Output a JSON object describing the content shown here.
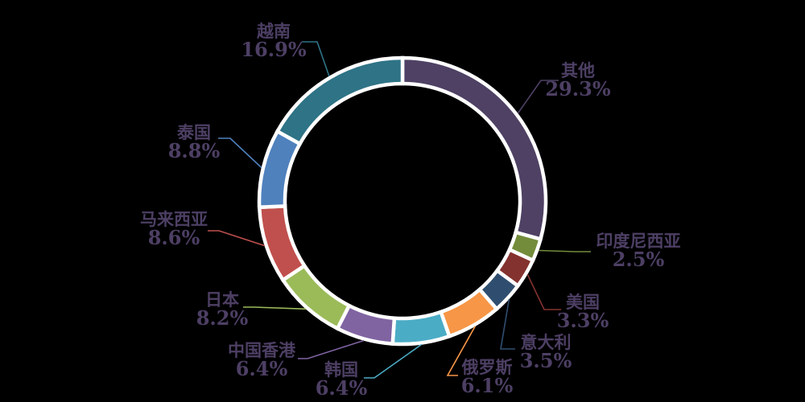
{
  "chart_data": {
    "type": "pie",
    "variant": "donut",
    "title": "",
    "unit": "percent",
    "start_angle_deg": 0,
    "direction": "clockwise",
    "legend": "none (callout labels with leader lines)",
    "background": "#000000",
    "separator_color": "#FFFFFF",
    "label_color": "#4D3F64",
    "categories": [
      "其他",
      "印度尼西亚",
      "美国",
      "意大利",
      "俄罗斯",
      "韩国",
      "中国香港",
      "日本",
      "马来西亚",
      "泰国",
      "越南"
    ],
    "values": [
      29.3,
      2.5,
      3.3,
      3.5,
      6.1,
      6.4,
      6.4,
      8.2,
      8.6,
      8.8,
      16.9
    ],
    "slices": [
      {
        "name": "其他",
        "value": 29.3,
        "label": "29.3%",
        "color": "#4E4164"
      },
      {
        "name": "印度尼西亚",
        "value": 2.5,
        "label": "2.5%",
        "color": "#738C3B"
      },
      {
        "name": "美国",
        "value": 3.3,
        "label": "3.3%",
        "color": "#84322F"
      },
      {
        "name": "意大利",
        "value": 3.5,
        "label": "3.5%",
        "color": "#2F4E6F"
      },
      {
        "name": "俄罗斯",
        "value": 6.1,
        "label": "6.1%",
        "color": "#F79646"
      },
      {
        "name": "韩国",
        "value": 6.4,
        "label": "6.4%",
        "color": "#4BACC6"
      },
      {
        "name": "中国香港",
        "value": 6.4,
        "label": "6.4%",
        "color": "#8064A2"
      },
      {
        "name": "日本",
        "value": 8.2,
        "label": "8.2%",
        "color": "#9BBB59"
      },
      {
        "name": "马来西亚",
        "value": 8.6,
        "label": "8.6%",
        "color": "#C0504D"
      },
      {
        "name": "泰国",
        "value": 8.8,
        "label": "8.8%",
        "color": "#4F81BD"
      },
      {
        "name": "越南",
        "value": 16.9,
        "label": "16.9%",
        "color": "#2E7386"
      }
    ]
  }
}
